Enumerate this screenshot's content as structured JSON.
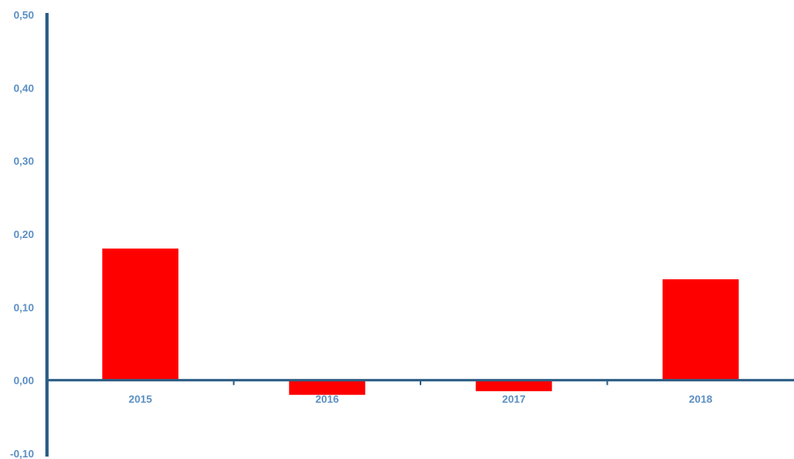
{
  "chart_data": {
    "type": "bar",
    "title": "",
    "xlabel": "",
    "ylabel": "",
    "categories": [
      "2015",
      "2016",
      "2017",
      "2018"
    ],
    "values": [
      0.18,
      -0.02,
      -0.015,
      0.138
    ],
    "ylim": [
      -0.1,
      0.5
    ],
    "yticks": [
      "0,50",
      "0,40",
      "0,30",
      "0,20",
      "0,10",
      "0,00",
      "-0,10"
    ],
    "grid": false,
    "legend": "none"
  },
  "colors": {
    "bar": "#ff0000",
    "axis": "#2e5f86",
    "tick_label": "#5b8fc2"
  }
}
